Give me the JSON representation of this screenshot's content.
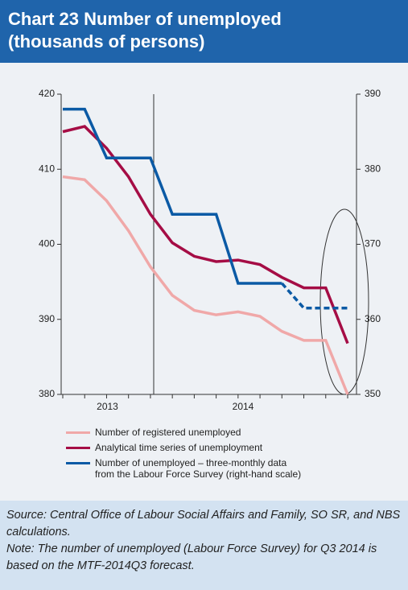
{
  "chart_data": {
    "type": "line",
    "title": "Chart 23 Number of unemployed (thousands of persons)",
    "categories": [
      null,
      null,
      null,
      null,
      null,
      null,
      null,
      null,
      null,
      null,
      null,
      null,
      null,
      null
    ],
    "x_group_labels": [
      "2013",
      "2014"
    ],
    "ylim": [
      380,
      420
    ],
    "yticks": [
      380,
      390,
      400,
      410,
      420
    ],
    "y2lim": [
      350,
      390
    ],
    "y2ticks": [
      350,
      360,
      370,
      380,
      390
    ],
    "series": [
      {
        "name": "Number of registered unemployed",
        "color": "#f0a8a8",
        "values": [
          409,
          408.6,
          405.8,
          401.8,
          397,
          393.2,
          391.2,
          390.6,
          391,
          390.4,
          388.4,
          387.2,
          387.2,
          380
        ]
      },
      {
        "name": "Analytical time series of unemployment",
        "color": "#a50d45",
        "values": [
          415,
          415.7,
          412.8,
          409,
          404,
          400.2,
          398.4,
          397.7,
          397.9,
          397.3,
          395.6,
          394.2,
          394.2,
          386.8
        ]
      },
      {
        "name": "Number of unemployed – three-monthly data from the Labour Force Survey (right-hand scale)",
        "color": "#0b5aa5",
        "axis": "y2",
        "step": true,
        "dashed_from": 10,
        "values": [
          388,
          388,
          381.5,
          381.5,
          381.5,
          374,
          374,
          374,
          364.8,
          364.8,
          364.8,
          361.5,
          361.5,
          361.5
        ]
      }
    ],
    "source": "Source: Central Office of Labour Social Affairs and Family, SO SR, and NBS calculations.",
    "note": "Note: The number of unemployed (Labour Force Survey) for Q3 2014 is based on the MTF-2014Q3 forecast."
  }
}
